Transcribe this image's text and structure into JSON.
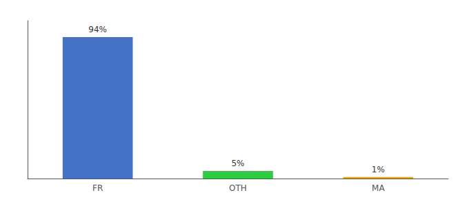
{
  "chart_data": {
    "type": "bar",
    "categories": [
      "FR",
      "OTH",
      "MA"
    ],
    "values": [
      94,
      5,
      1
    ],
    "value_labels": [
      "94%",
      "5%",
      "1%"
    ],
    "colors": [
      "#4472c4",
      "#2ecc40",
      "#f0a500"
    ],
    "ylim": [
      0,
      105
    ],
    "grid": false,
    "data_labels": true,
    "tick_labels": "x"
  }
}
